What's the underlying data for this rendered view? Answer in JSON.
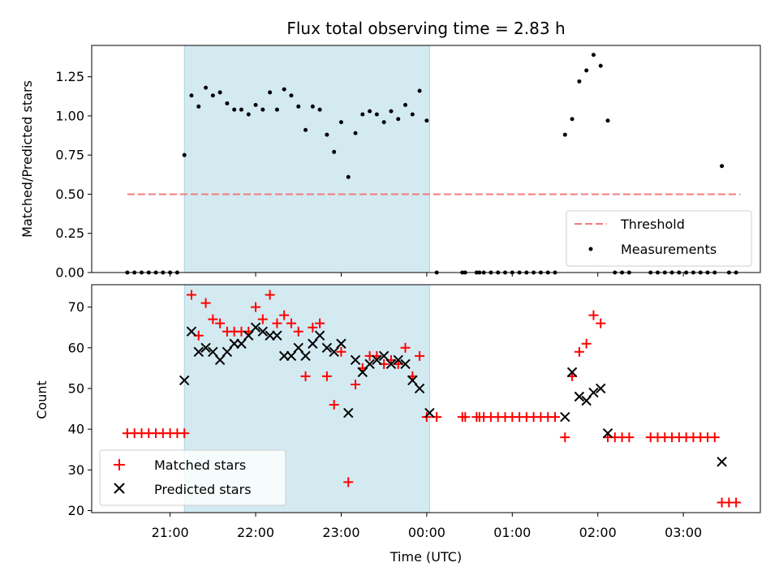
{
  "chart_data": [
    {
      "type": "scatter",
      "title": "Flux total observing time = 2.83 h",
      "xlabel": "",
      "ylabel": "Matched/Predicted stars",
      "ylim": [
        0,
        1.45
      ],
      "yticks": [
        "0.00",
        "0.25",
        "0.50",
        "0.75",
        "1.00",
        "1.25"
      ],
      "ytick_values": [
        0,
        0.25,
        0.5,
        0.75,
        1.0,
        1.25
      ],
      "shaded_span": [
        "21:10",
        "00:02"
      ],
      "shaded_color": "#d3eaf1",
      "legend_position": "bottom-right",
      "threshold": {
        "name": "Threshold",
        "value": 0.5,
        "x_start": "20:30",
        "x_end": "03:40",
        "color": "#f37b7b",
        "style": "dashed"
      },
      "series": [
        {
          "name": "Measurements",
          "color": "#000000",
          "marker": "dot",
          "points": [
            [
              "20:30",
              0
            ],
            [
              "20:35",
              0
            ],
            [
              "20:40",
              0
            ],
            [
              "20:45",
              0
            ],
            [
              "20:50",
              0
            ],
            [
              "20:55",
              0
            ],
            [
              "21:00",
              0
            ],
            [
              "21:05",
              0
            ],
            [
              "21:10",
              0.75
            ],
            [
              "21:15",
              1.13
            ],
            [
              "21:20",
              1.06
            ],
            [
              "21:25",
              1.18
            ],
            [
              "21:30",
              1.13
            ],
            [
              "21:35",
              1.15
            ],
            [
              "21:40",
              1.08
            ],
            [
              "21:45",
              1.04
            ],
            [
              "21:50",
              1.04
            ],
            [
              "21:55",
              1.01
            ],
            [
              "22:00",
              1.07
            ],
            [
              "22:05",
              1.04
            ],
            [
              "22:10",
              1.15
            ],
            [
              "22:15",
              1.04
            ],
            [
              "22:20",
              1.17
            ],
            [
              "22:25",
              1.13
            ],
            [
              "22:30",
              1.06
            ],
            [
              "22:35",
              0.91
            ],
            [
              "22:40",
              1.06
            ],
            [
              "22:45",
              1.04
            ],
            [
              "22:50",
              0.88
            ],
            [
              "22:55",
              0.77
            ],
            [
              "23:00",
              0.96
            ],
            [
              "23:05",
              0.61
            ],
            [
              "23:10",
              0.89
            ],
            [
              "23:15",
              1.01
            ],
            [
              "23:20",
              1.03
            ],
            [
              "23:25",
              1.01
            ],
            [
              "23:30",
              0.96
            ],
            [
              "23:35",
              1.03
            ],
            [
              "23:40",
              0.98
            ],
            [
              "23:45",
              1.07
            ],
            [
              "23:50",
              1.01
            ],
            [
              "23:55",
              1.16
            ],
            [
              "00:00",
              0.97
            ],
            [
              "00:07",
              0
            ],
            [
              "00:25",
              0
            ],
            [
              "00:27",
              0
            ],
            [
              "00:35",
              0
            ],
            [
              "00:37",
              0
            ],
            [
              "00:40",
              0
            ],
            [
              "00:45",
              0
            ],
            [
              "00:50",
              0
            ],
            [
              "00:55",
              0
            ],
            [
              "01:00",
              0
            ],
            [
              "01:05",
              0
            ],
            [
              "01:10",
              0
            ],
            [
              "01:15",
              0
            ],
            [
              "01:20",
              0
            ],
            [
              "01:25",
              0
            ],
            [
              "01:30",
              0
            ],
            [
              "01:37",
              0.88
            ],
            [
              "01:42",
              0.98
            ],
            [
              "01:47",
              1.22
            ],
            [
              "01:52",
              1.29
            ],
            [
              "01:57",
              1.39
            ],
            [
              "02:02",
              1.32
            ],
            [
              "02:07",
              0.97
            ],
            [
              "02:12",
              0
            ],
            [
              "02:17",
              0
            ],
            [
              "02:22",
              0
            ],
            [
              "02:37",
              0
            ],
            [
              "02:42",
              0
            ],
            [
              "02:47",
              0
            ],
            [
              "02:52",
              0
            ],
            [
              "02:57",
              0
            ],
            [
              "03:02",
              0
            ],
            [
              "03:07",
              0
            ],
            [
              "03:12",
              0
            ],
            [
              "03:17",
              0
            ],
            [
              "03:22",
              0
            ],
            [
              "03:27",
              0.68
            ],
            [
              "03:32",
              0
            ],
            [
              "03:37",
              0
            ]
          ]
        }
      ]
    },
    {
      "type": "scatter",
      "title": "",
      "xlabel": "Time (UTC)",
      "ylabel": "Count",
      "ylim": [
        19.5,
        75.5
      ],
      "yticks": [
        "20",
        "30",
        "40",
        "50",
        "60",
        "70"
      ],
      "ytick_values": [
        20,
        30,
        40,
        50,
        60,
        70
      ],
      "xlim": [
        "20:05",
        "03:54"
      ],
      "xticks": [
        "21:00",
        "22:00",
        "23:00",
        "00:00",
        "01:00",
        "02:00",
        "03:00"
      ],
      "shaded_span": [
        "21:10",
        "00:02"
      ],
      "shaded_color": "#d3eaf1",
      "legend_position": "bottom-left",
      "series": [
        {
          "name": "Matched stars",
          "color": "#ff0000",
          "marker": "plus",
          "points": [
            [
              "20:30",
              39
            ],
            [
              "20:35",
              39
            ],
            [
              "20:40",
              39
            ],
            [
              "20:45",
              39
            ],
            [
              "20:50",
              39
            ],
            [
              "20:55",
              39
            ],
            [
              "21:00",
              39
            ],
            [
              "21:05",
              39
            ],
            [
              "21:10",
              39
            ],
            [
              "21:15",
              73
            ],
            [
              "21:20",
              63
            ],
            [
              "21:25",
              71
            ],
            [
              "21:30",
              67
            ],
            [
              "21:35",
              66
            ],
            [
              "21:40",
              64
            ],
            [
              "21:45",
              64
            ],
            [
              "21:50",
              64
            ],
            [
              "21:55",
              64
            ],
            [
              "22:00",
              70
            ],
            [
              "22:05",
              67
            ],
            [
              "22:10",
              73
            ],
            [
              "22:15",
              66
            ],
            [
              "22:20",
              68
            ],
            [
              "22:25",
              66
            ],
            [
              "22:30",
              64
            ],
            [
              "22:35",
              53
            ],
            [
              "22:40",
              65
            ],
            [
              "22:45",
              66
            ],
            [
              "22:50",
              53
            ],
            [
              "22:55",
              46
            ],
            [
              "23:00",
              59
            ],
            [
              "23:05",
              27
            ],
            [
              "23:10",
              51
            ],
            [
              "23:15",
              55
            ],
            [
              "23:20",
              58
            ],
            [
              "23:25",
              58
            ],
            [
              "23:30",
              56
            ],
            [
              "23:35",
              57
            ],
            [
              "23:40",
              56
            ],
            [
              "23:45",
              60
            ],
            [
              "23:50",
              53
            ],
            [
              "23:55",
              58
            ],
            [
              "00:00",
              43
            ],
            [
              "00:07",
              43
            ],
            [
              "00:25",
              43
            ],
            [
              "00:27",
              43
            ],
            [
              "00:35",
              43
            ],
            [
              "00:37",
              43
            ],
            [
              "00:40",
              43
            ],
            [
              "00:45",
              43
            ],
            [
              "00:50",
              43
            ],
            [
              "00:55",
              43
            ],
            [
              "01:00",
              43
            ],
            [
              "01:05",
              43
            ],
            [
              "01:10",
              43
            ],
            [
              "01:15",
              43
            ],
            [
              "01:20",
              43
            ],
            [
              "01:25",
              43
            ],
            [
              "01:30",
              43
            ],
            [
              "01:37",
              38
            ],
            [
              "01:42",
              53
            ],
            [
              "01:47",
              59
            ],
            [
              "01:52",
              61
            ],
            [
              "01:57",
              68
            ],
            [
              "02:02",
              66
            ],
            [
              "02:07",
              38
            ],
            [
              "02:12",
              38
            ],
            [
              "02:17",
              38
            ],
            [
              "02:22",
              38
            ],
            [
              "02:37",
              38
            ],
            [
              "02:42",
              38
            ],
            [
              "02:47",
              38
            ],
            [
              "02:52",
              38
            ],
            [
              "02:57",
              38
            ],
            [
              "03:02",
              38
            ],
            [
              "03:07",
              38
            ],
            [
              "03:12",
              38
            ],
            [
              "03:17",
              38
            ],
            [
              "03:22",
              38
            ],
            [
              "03:27",
              22
            ],
            [
              "03:32",
              22
            ],
            [
              "03:37",
              22
            ]
          ]
        },
        {
          "name": "Predicted stars",
          "color": "#000000",
          "marker": "x",
          "points": [
            [
              "21:10",
              52
            ],
            [
              "21:15",
              64
            ],
            [
              "21:20",
              59
            ],
            [
              "21:25",
              60
            ],
            [
              "21:30",
              59
            ],
            [
              "21:35",
              57
            ],
            [
              "21:40",
              59
            ],
            [
              "21:45",
              61
            ],
            [
              "21:50",
              61
            ],
            [
              "21:55",
              63
            ],
            [
              "22:00",
              65
            ],
            [
              "22:05",
              64
            ],
            [
              "22:10",
              63
            ],
            [
              "22:15",
              63
            ],
            [
              "22:20",
              58
            ],
            [
              "22:25",
              58
            ],
            [
              "22:30",
              60
            ],
            [
              "22:35",
              58
            ],
            [
              "22:40",
              61
            ],
            [
              "22:45",
              63
            ],
            [
              "22:50",
              60
            ],
            [
              "22:55",
              59
            ],
            [
              "23:00",
              61
            ],
            [
              "23:05",
              44
            ],
            [
              "23:10",
              57
            ],
            [
              "23:15",
              54
            ],
            [
              "23:20",
              56
            ],
            [
              "23:25",
              57
            ],
            [
              "23:30",
              58
            ],
            [
              "23:35",
              56
            ],
            [
              "23:40",
              57
            ],
            [
              "23:45",
              56
            ],
            [
              "23:50",
              52
            ],
            [
              "23:55",
              50
            ],
            [
              "00:02",
              44
            ],
            [
              "01:37",
              43
            ],
            [
              "01:42",
              54
            ],
            [
              "01:47",
              48
            ],
            [
              "01:52",
              47
            ],
            [
              "01:57",
              49
            ],
            [
              "02:02",
              50
            ],
            [
              "02:07",
              39
            ],
            [
              "03:27",
              32
            ]
          ]
        }
      ]
    }
  ]
}
